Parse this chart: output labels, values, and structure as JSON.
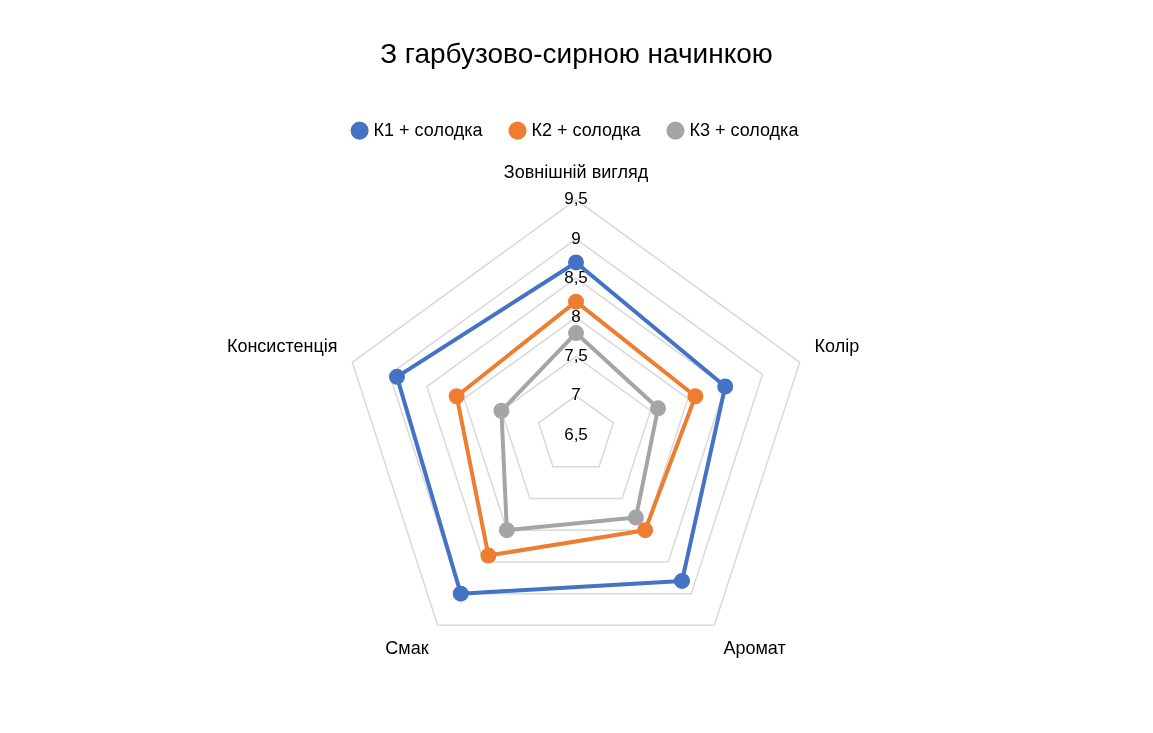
{
  "chart_data": {
    "type": "radar",
    "title": "З гарбузово-сирною начинкою",
    "categories": [
      "Зовнішній вигляд",
      "Колір",
      "Аромат",
      "Смак",
      "Консистенція"
    ],
    "series": [
      {
        "name": "К1 + солодка",
        "color": "#4472c4",
        "values": [
          8.7,
          8.5,
          8.8,
          9.0,
          8.9
        ]
      },
      {
        "name": "К2 + солодка",
        "color": "#ed7d31",
        "values": [
          8.2,
          8.1,
          8.0,
          8.4,
          8.1
        ]
      },
      {
        "name": "К3 + солодка",
        "color": "#a5a5a5",
        "values": [
          7.8,
          7.6,
          7.8,
          8.0,
          7.5
        ]
      }
    ],
    "ylim": [
      6.5,
      9.5
    ],
    "yticks": [
      {
        "value": 6.5,
        "label": "6,5"
      },
      7,
      {
        "value": 7.5,
        "label": "7,5"
      },
      8,
      {
        "value": 8.5,
        "label": "8,5"
      },
      9,
      {
        "value": 9.5,
        "label": "9,5"
      }
    ],
    "grid": true,
    "legend": "top",
    "marker": "circle"
  }
}
